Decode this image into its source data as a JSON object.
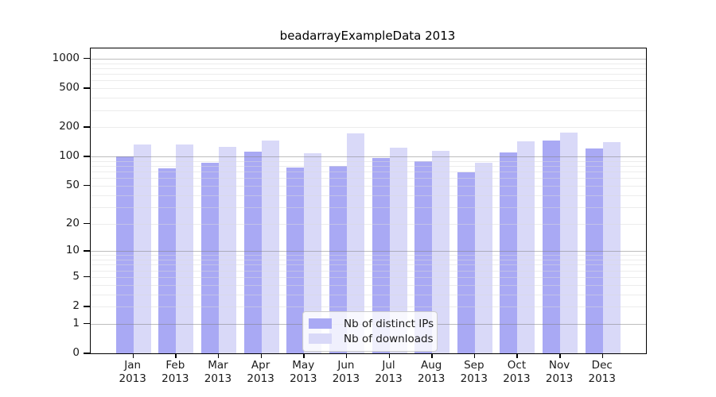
{
  "title": "beadarrayExampleData 2013",
  "colors": {
    "ips_bar": "#a9a9f4",
    "downloads_bar": "#d9d9f8",
    "grid_major": "#808080",
    "grid_minor": "#d9d9d9",
    "axis": "#000000",
    "text": "#1a1a1a",
    "legend_border": "#cccccc"
  },
  "legend": {
    "items": [
      {
        "label": "Nb of distinct IPs"
      },
      {
        "label": "Nb of downloads"
      }
    ]
  },
  "chart_data": {
    "type": "bar",
    "title": "beadarrayExampleData 2013",
    "categories": [
      "Jan 2013",
      "Feb 2013",
      "Mar 2013",
      "Apr 2013",
      "May 2013",
      "Jun 2013",
      "Jul 2013",
      "Aug 2013",
      "Sep 2013",
      "Oct 2013",
      "Nov 2013",
      "Dec 2013"
    ],
    "series": [
      {
        "name": "Nb of distinct IPs",
        "color": "#a9a9f4",
        "values": [
          100,
          75,
          86,
          112,
          77,
          80,
          97,
          90,
          69,
          110,
          147,
          120
        ]
      },
      {
        "name": "Nb of downloads",
        "color": "#d9d9f8",
        "values": [
          133,
          132,
          126,
          145,
          109,
          172,
          123,
          114,
          87,
          144,
          176,
          142
        ]
      }
    ],
    "xlabel": "",
    "ylabel": "",
    "yscale": "log1p",
    "yticks": [
      0,
      1,
      2,
      5,
      10,
      20,
      50,
      100,
      200,
      500,
      1000
    ],
    "ylim": [
      0,
      1275
    ],
    "grid": "horizontal, minor log gridlines, drawn over bars",
    "legend_position": "inside bottom-center"
  }
}
